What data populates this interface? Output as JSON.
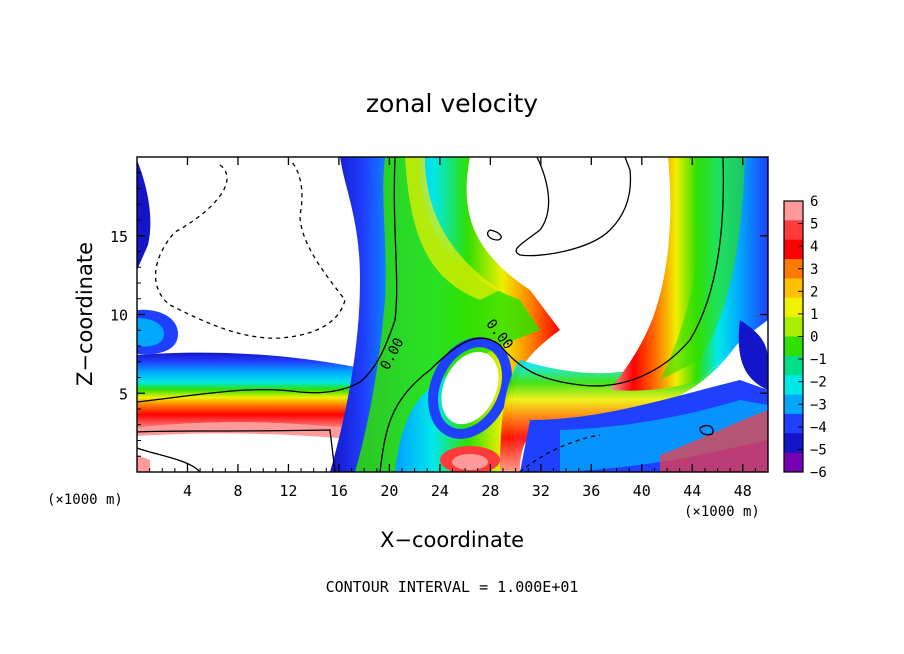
{
  "chart_data": {
    "type": "heatmap",
    "title": "zonal velocity",
    "xlabel": "X−coordinate",
    "ylabel": "Z−coordinate",
    "x_unit_label_left": "(×1000 m)",
    "x_unit_label_right": "(×1000 m)",
    "xlim": [
      0,
      50
    ],
    "ylim": [
      0,
      20
    ],
    "x_ticks": [
      4,
      8,
      12,
      16,
      20,
      24,
      28,
      32,
      36,
      40,
      44,
      48
    ],
    "y_ticks": [
      5,
      10,
      15
    ],
    "colorbar": {
      "ticks": [
        6,
        5,
        4,
        3,
        2,
        1,
        0,
        -1,
        -2,
        -3,
        -4,
        -5,
        -6
      ],
      "colors": [
        "#ff9a9a",
        "#ff3b3b",
        "#ff0000",
        "#ff7a00",
        "#ffc000",
        "#f0f000",
        "#a8f000",
        "#30e000",
        "#00e08a",
        "#00e8e8",
        "#00a8ff",
        "#2040ff",
        "#1414c8",
        "#7800b4"
      ]
    },
    "contour_label": "0.00",
    "footer": "CONTOUR INTERVAL = 1.000E+01"
  }
}
